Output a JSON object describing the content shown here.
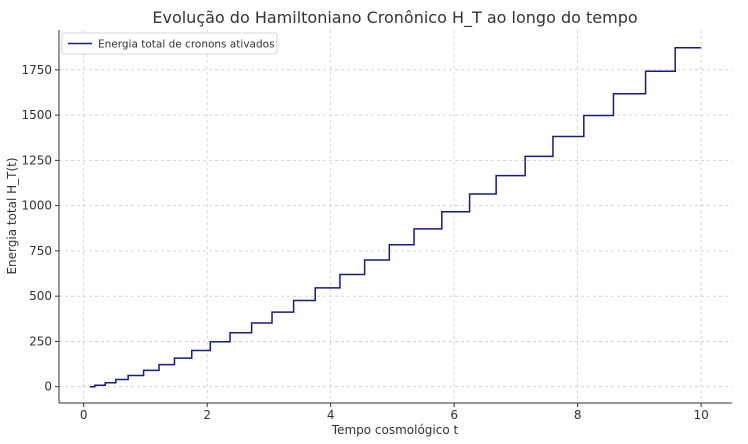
{
  "chart_data": {
    "type": "line",
    "title": "Evolução do Hamiltoniano Cronônico H_T ao longo do tempo",
    "xlabel": "Tempo cosmológico t",
    "ylabel": "Energia total H_T(t)",
    "xlim": [
      -0.4,
      10.5
    ],
    "ylim": [
      -90,
      1970
    ],
    "xticks": [
      0,
      2,
      4,
      6,
      8,
      10
    ],
    "yticks": [
      0,
      250,
      500,
      750,
      1000,
      1250,
      1500,
      1750
    ],
    "grid": true,
    "legend_position": "top-left",
    "series": [
      {
        "name": "Energia total de cronons ativados",
        "color": "#1a1a80",
        "step": "post",
        "x": [
          0.1,
          0.18,
          0.35,
          0.52,
          0.72,
          0.97,
          1.22,
          1.47,
          1.75,
          2.05,
          2.37,
          2.72,
          3.05,
          3.4,
          3.75,
          4.15,
          4.55,
          4.95,
          5.35,
          5.8,
          6.25,
          6.68,
          7.15,
          7.6,
          8.1,
          8.58,
          9.1,
          9.58,
          10.0
        ],
        "y": [
          0,
          8,
          22,
          40,
          62,
          90,
          122,
          158,
          200,
          248,
          298,
          352,
          412,
          476,
          546,
          620,
          700,
          784,
          872,
          966,
          1064,
          1166,
          1272,
          1382,
          1498,
          1618,
          1742,
          1872,
          1872
        ]
      }
    ]
  }
}
